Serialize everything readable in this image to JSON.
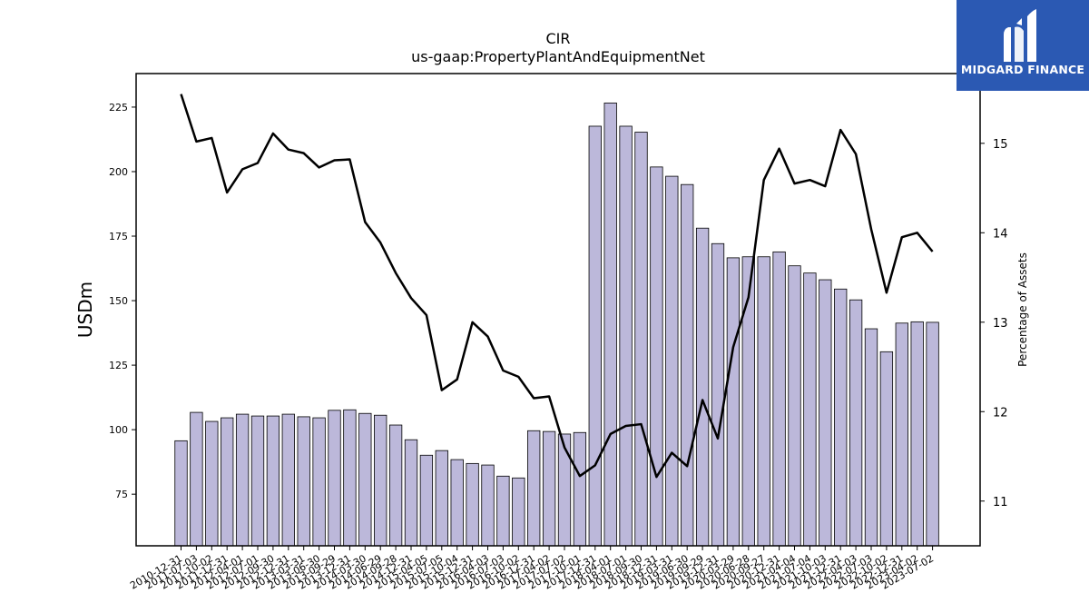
{
  "brand": {
    "name": "MIDGARD FINANCE",
    "background": "#2b59b3",
    "logo_icon": "midgard-mark-icon"
  },
  "chart_data": {
    "type": "bar",
    "title": "CIR",
    "subtitle": "us-gaap:PropertyPlantAndEquipmentNet",
    "ylabel": "USDm",
    "y2label": "Percentage of Assets",
    "ylim": [
      55,
      238
    ],
    "y2lim": [
      10.5,
      15.78
    ],
    "yticks": [
      75,
      100,
      125,
      150,
      175,
      200,
      225
    ],
    "y2ticks": [
      11,
      12,
      13,
      14,
      15
    ],
    "grid": false,
    "bar_color": "#bcb8da",
    "line_color": "#000000",
    "categories": [
      "2010-12-31",
      "2011-07-03",
      "2011-10-02",
      "2011-12-31",
      "2012-04-01",
      "2012-07-01",
      "2012-09-30",
      "2012-12-31",
      "2013-03-31",
      "2013-06-30",
      "2013-09-29",
      "2013-12-31",
      "2014-03-30",
      "2014-06-29",
      "2014-09-28",
      "2014-12-31",
      "2015-04-05",
      "2015-07-05",
      "2015-10-04",
      "2015-12-31",
      "2016-04-03",
      "2016-07-03",
      "2016-10-02",
      "2016-12-31",
      "2017-04-02",
      "2017-07-02",
      "2017-10-01",
      "2017-12-31",
      "2018-04-01",
      "2018-07-01",
      "2018-09-30",
      "2018-12-31",
      "2019-03-31",
      "2019-06-30",
      "2019-09-29",
      "2019-12-31",
      "2020-03-29",
      "2020-06-28",
      "2020-09-27",
      "2020-12-31",
      "2021-04-04",
      "2021-07-04",
      "2021-10-03",
      "2021-12-31",
      "2022-04-03",
      "2022-07-03",
      "2022-10-02",
      "2022-12-31",
      "2023-04-02",
      "2023-07-02"
    ],
    "series": [
      {
        "kind": "bar",
        "axis": "left",
        "values": [
          95.7,
          106.7,
          103.2,
          104.6,
          106.0,
          105.3,
          105.3,
          106.0,
          105.0,
          104.6,
          107.5,
          107.7,
          106.3,
          105.6,
          101.8,
          96.1,
          90.1,
          91.9,
          88.4,
          86.9,
          86.3,
          82.0,
          81.3,
          99.6,
          99.3,
          98.3,
          98.9,
          217.6,
          226.6,
          217.6,
          215.3,
          201.8,
          198.2,
          195.0,
          178.1,
          172.1,
          166.6,
          167.0,
          167.0,
          168.9,
          163.5,
          160.7,
          158.1,
          154.5,
          150.3,
          139.1,
          130.2,
          141.3,
          141.8,
          141.6
        ]
      },
      {
        "kind": "line",
        "axis": "right",
        "values": [
          15.55,
          15.02,
          15.06,
          14.45,
          14.71,
          14.78,
          15.11,
          14.93,
          14.89,
          14.73,
          14.81,
          14.82,
          14.12,
          13.89,
          13.55,
          13.27,
          13.08,
          12.24,
          12.36,
          13.0,
          12.84,
          12.46,
          12.39,
          12.15,
          12.17,
          11.6,
          11.28,
          11.4,
          11.75,
          11.84,
          11.86,
          11.27,
          11.54,
          11.39,
          12.13,
          11.7,
          12.72,
          13.28,
          14.59,
          14.94,
          14.55,
          14.59,
          14.52,
          15.15,
          14.88,
          14.04,
          13.33,
          13.95,
          14.0,
          13.79
        ]
      }
    ]
  }
}
